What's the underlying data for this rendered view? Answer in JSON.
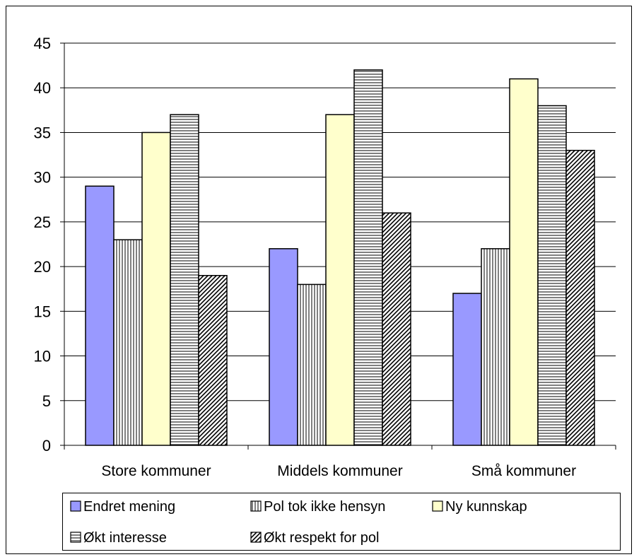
{
  "chart_data": {
    "type": "bar",
    "title": "",
    "xlabel": "",
    "ylabel": "",
    "categories": [
      "Store kommuner",
      "Middels kommuner",
      "Små kommuner"
    ],
    "ylim": [
      0,
      45
    ],
    "yticks": [
      0,
      5,
      10,
      15,
      20,
      25,
      30,
      35,
      40,
      45
    ],
    "grid": true,
    "legend_position": "bottom",
    "series": [
      {
        "name": "Endret mening",
        "values": [
          29,
          22,
          17
        ],
        "color": "#9999ff",
        "pattern": "solid"
      },
      {
        "name": "Pol tok ikke hensyn",
        "values": [
          23,
          18,
          22
        ],
        "color": "#ffffff",
        "pattern": "vertical-lines"
      },
      {
        "name": "Ny kunnskap",
        "values": [
          35,
          37,
          41
        ],
        "color": "#ffffcc",
        "pattern": "solid"
      },
      {
        "name": "Økt interesse",
        "values": [
          37,
          42,
          38
        ],
        "color": "#ffffff",
        "pattern": "horizontal-lines"
      },
      {
        "name": "Økt respekt for pol",
        "values": [
          19,
          26,
          33
        ],
        "color": "#ffffff",
        "pattern": "diagonal-lines"
      }
    ]
  }
}
